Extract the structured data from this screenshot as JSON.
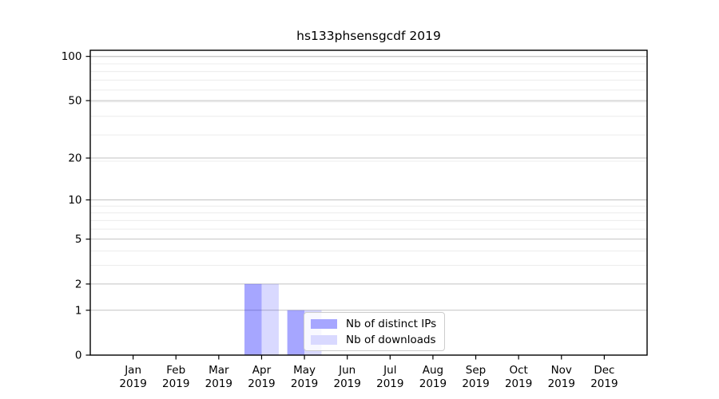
{
  "chart_data": {
    "type": "bar",
    "title": "hs133phsensgcdf 2019",
    "categories": [
      "Jan 2019",
      "Feb 2019",
      "Mar 2019",
      "Apr 2019",
      "May 2019",
      "Jun 2019",
      "Jul 2019",
      "Aug 2019",
      "Sep 2019",
      "Oct 2019",
      "Nov 2019",
      "Dec 2019"
    ],
    "series": [
      {
        "name": "Nb of distinct IPs",
        "color": "#0000ff",
        "alpha": 0.35,
        "rendered_color": "#a6a6ff",
        "values": [
          0,
          0,
          0,
          2,
          1,
          0,
          0,
          0,
          0,
          0,
          0,
          0
        ]
      },
      {
        "name": "Nb of downloads",
        "color": "#0000ff",
        "alpha": 0.15,
        "rendered_color": "#d9d9ff",
        "values": [
          0,
          0,
          0,
          2,
          1,
          0,
          0,
          0,
          0,
          0,
          0,
          0
        ]
      }
    ],
    "xlabel": "",
    "ylabel": "",
    "yticks": [
      0,
      1,
      2,
      5,
      10,
      20,
      50,
      100
    ],
    "yscale": "log1p",
    "ylim": [
      0,
      110
    ],
    "grid": "both",
    "grid_major_color": "#c2c2c2",
    "grid_minor_color": "#ececec",
    "spine_color": "#000000",
    "text_color": "#000000",
    "legend_position": "inside-lower-center"
  }
}
